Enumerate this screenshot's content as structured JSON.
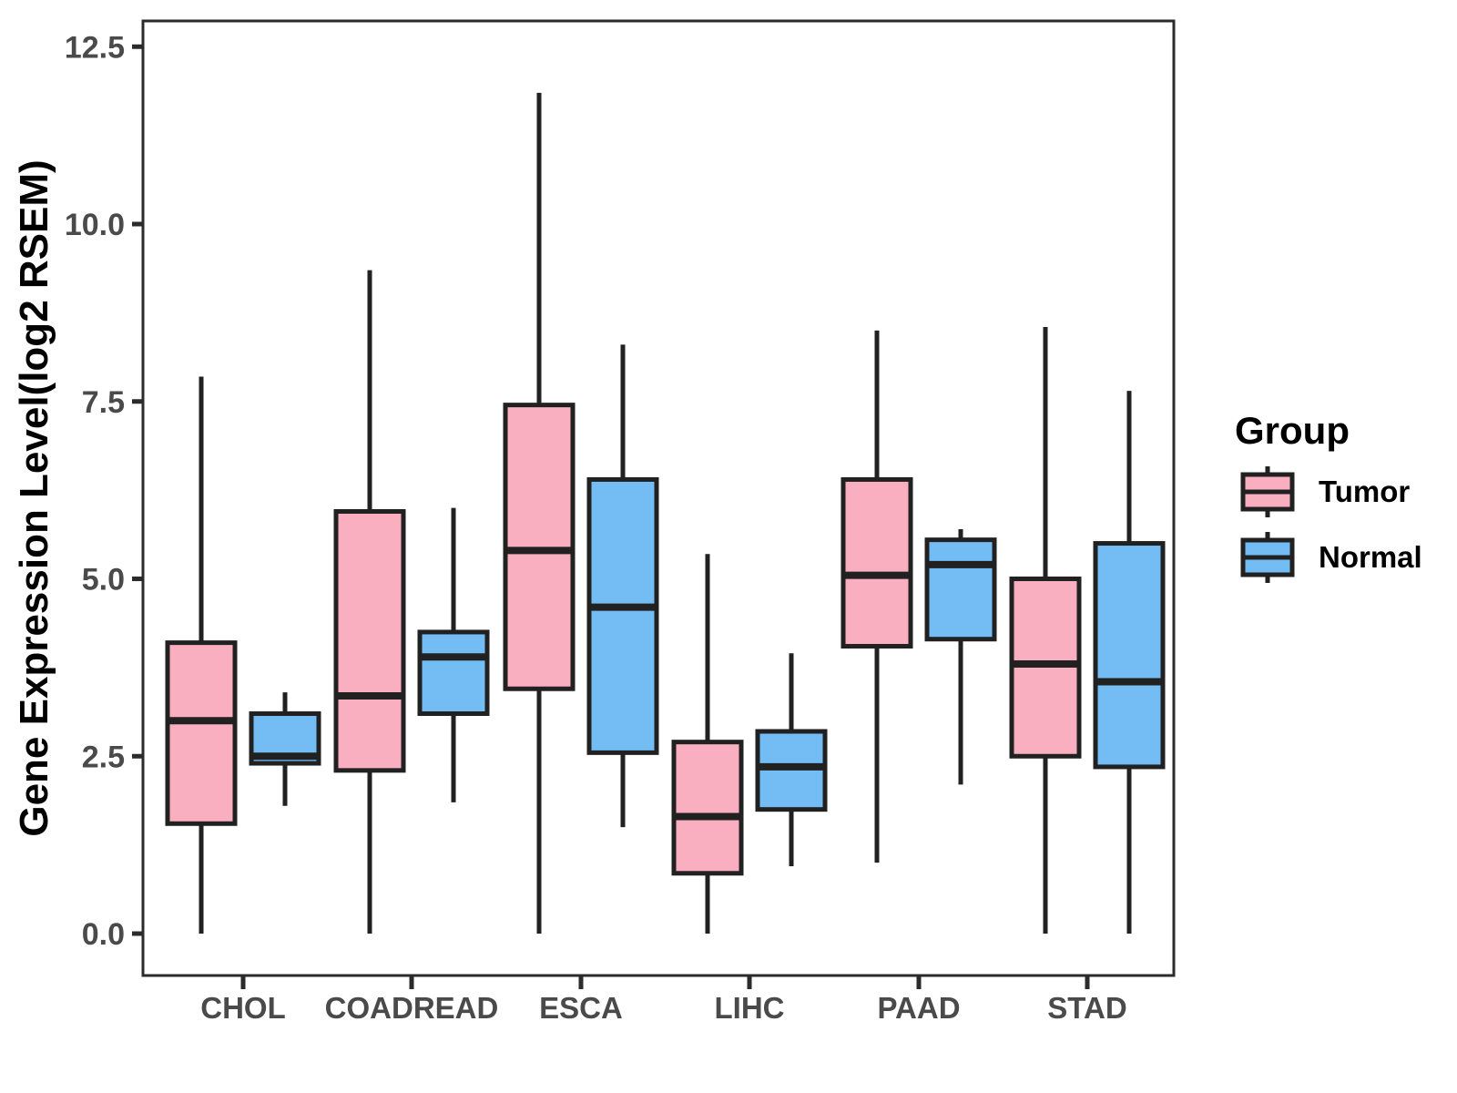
{
  "figure": {
    "y_axis_title": "Gene Expression Level(log2 RSEM)",
    "y_tick_labels": [
      "0.0",
      "2.5",
      "5.0",
      "7.5",
      "10.0",
      "12.5"
    ],
    "x_category_labels": [
      "CHOL",
      "COADREAD",
      "ESCA",
      "LIHC",
      "PAAD",
      "STAD"
    ]
  },
  "legend": {
    "title": "Group",
    "entries": [
      {
        "label": "Tumor",
        "color": "#FAAFC1"
      },
      {
        "label": "Normal",
        "color": "#73BDF4"
      }
    ]
  },
  "colors": {
    "tumor_fill": "#FAAFC1",
    "normal_fill": "#73BDF4",
    "box_stroke": "#212121",
    "axis_line": "#2b2b2b",
    "tick_text": "#4a4a4a",
    "panel_bg": "#ffffff"
  },
  "chart_data": {
    "type": "boxplot",
    "title": "",
    "xlabel": "",
    "ylabel": "Gene Expression Level(log2 RSEM)",
    "categories": [
      "CHOL",
      "COADREAD",
      "ESCA",
      "LIHC",
      "PAAD",
      "STAD"
    ],
    "yticks": [
      0.0,
      2.5,
      5.0,
      7.5,
      10.0,
      12.5
    ],
    "ylim": [
      -0.6,
      13.0
    ],
    "grid": false,
    "legend_position": "right",
    "legend_title": "Group",
    "series": [
      {
        "name": "Tumor",
        "fill": "#FAAFC1",
        "boxes": [
          {
            "category": "CHOL",
            "min": 0.0,
            "q1": 1.55,
            "median": 3.0,
            "q3": 4.1,
            "max": 7.85
          },
          {
            "category": "COADREAD",
            "min": 0.0,
            "q1": 2.3,
            "median": 3.35,
            "q3": 5.95,
            "max": 9.35
          },
          {
            "category": "ESCA",
            "min": 0.0,
            "q1": 3.45,
            "median": 5.4,
            "q3": 7.45,
            "max": 11.85
          },
          {
            "category": "LIHC",
            "min": 0.0,
            "q1": 0.85,
            "median": 1.65,
            "q3": 2.7,
            "max": 5.35
          },
          {
            "category": "PAAD",
            "min": 1.0,
            "q1": 4.05,
            "median": 5.05,
            "q3": 6.4,
            "max": 8.5
          },
          {
            "category": "STAD",
            "min": 0.0,
            "q1": 2.5,
            "median": 3.8,
            "q3": 5.0,
            "max": 8.55
          }
        ]
      },
      {
        "name": "Normal",
        "fill": "#73BDF4",
        "boxes": [
          {
            "category": "CHOL",
            "min": 1.8,
            "q1": 2.4,
            "median": 2.5,
            "q3": 3.1,
            "max": 3.4
          },
          {
            "category": "COADREAD",
            "min": 1.85,
            "q1": 3.1,
            "median": 3.9,
            "q3": 4.25,
            "max": 6.0
          },
          {
            "category": "ESCA",
            "min": 1.5,
            "q1": 2.55,
            "median": 4.6,
            "q3": 6.4,
            "max": 8.3
          },
          {
            "category": "LIHC",
            "min": 0.95,
            "q1": 1.75,
            "median": 2.35,
            "q3": 2.85,
            "max": 3.95
          },
          {
            "category": "PAAD",
            "min": 2.1,
            "q1": 4.15,
            "median": 5.2,
            "q3": 5.55,
            "max": 5.7
          },
          {
            "category": "STAD",
            "min": 0.0,
            "q1": 2.35,
            "median": 3.55,
            "q3": 5.5,
            "max": 7.65
          }
        ]
      }
    ]
  }
}
